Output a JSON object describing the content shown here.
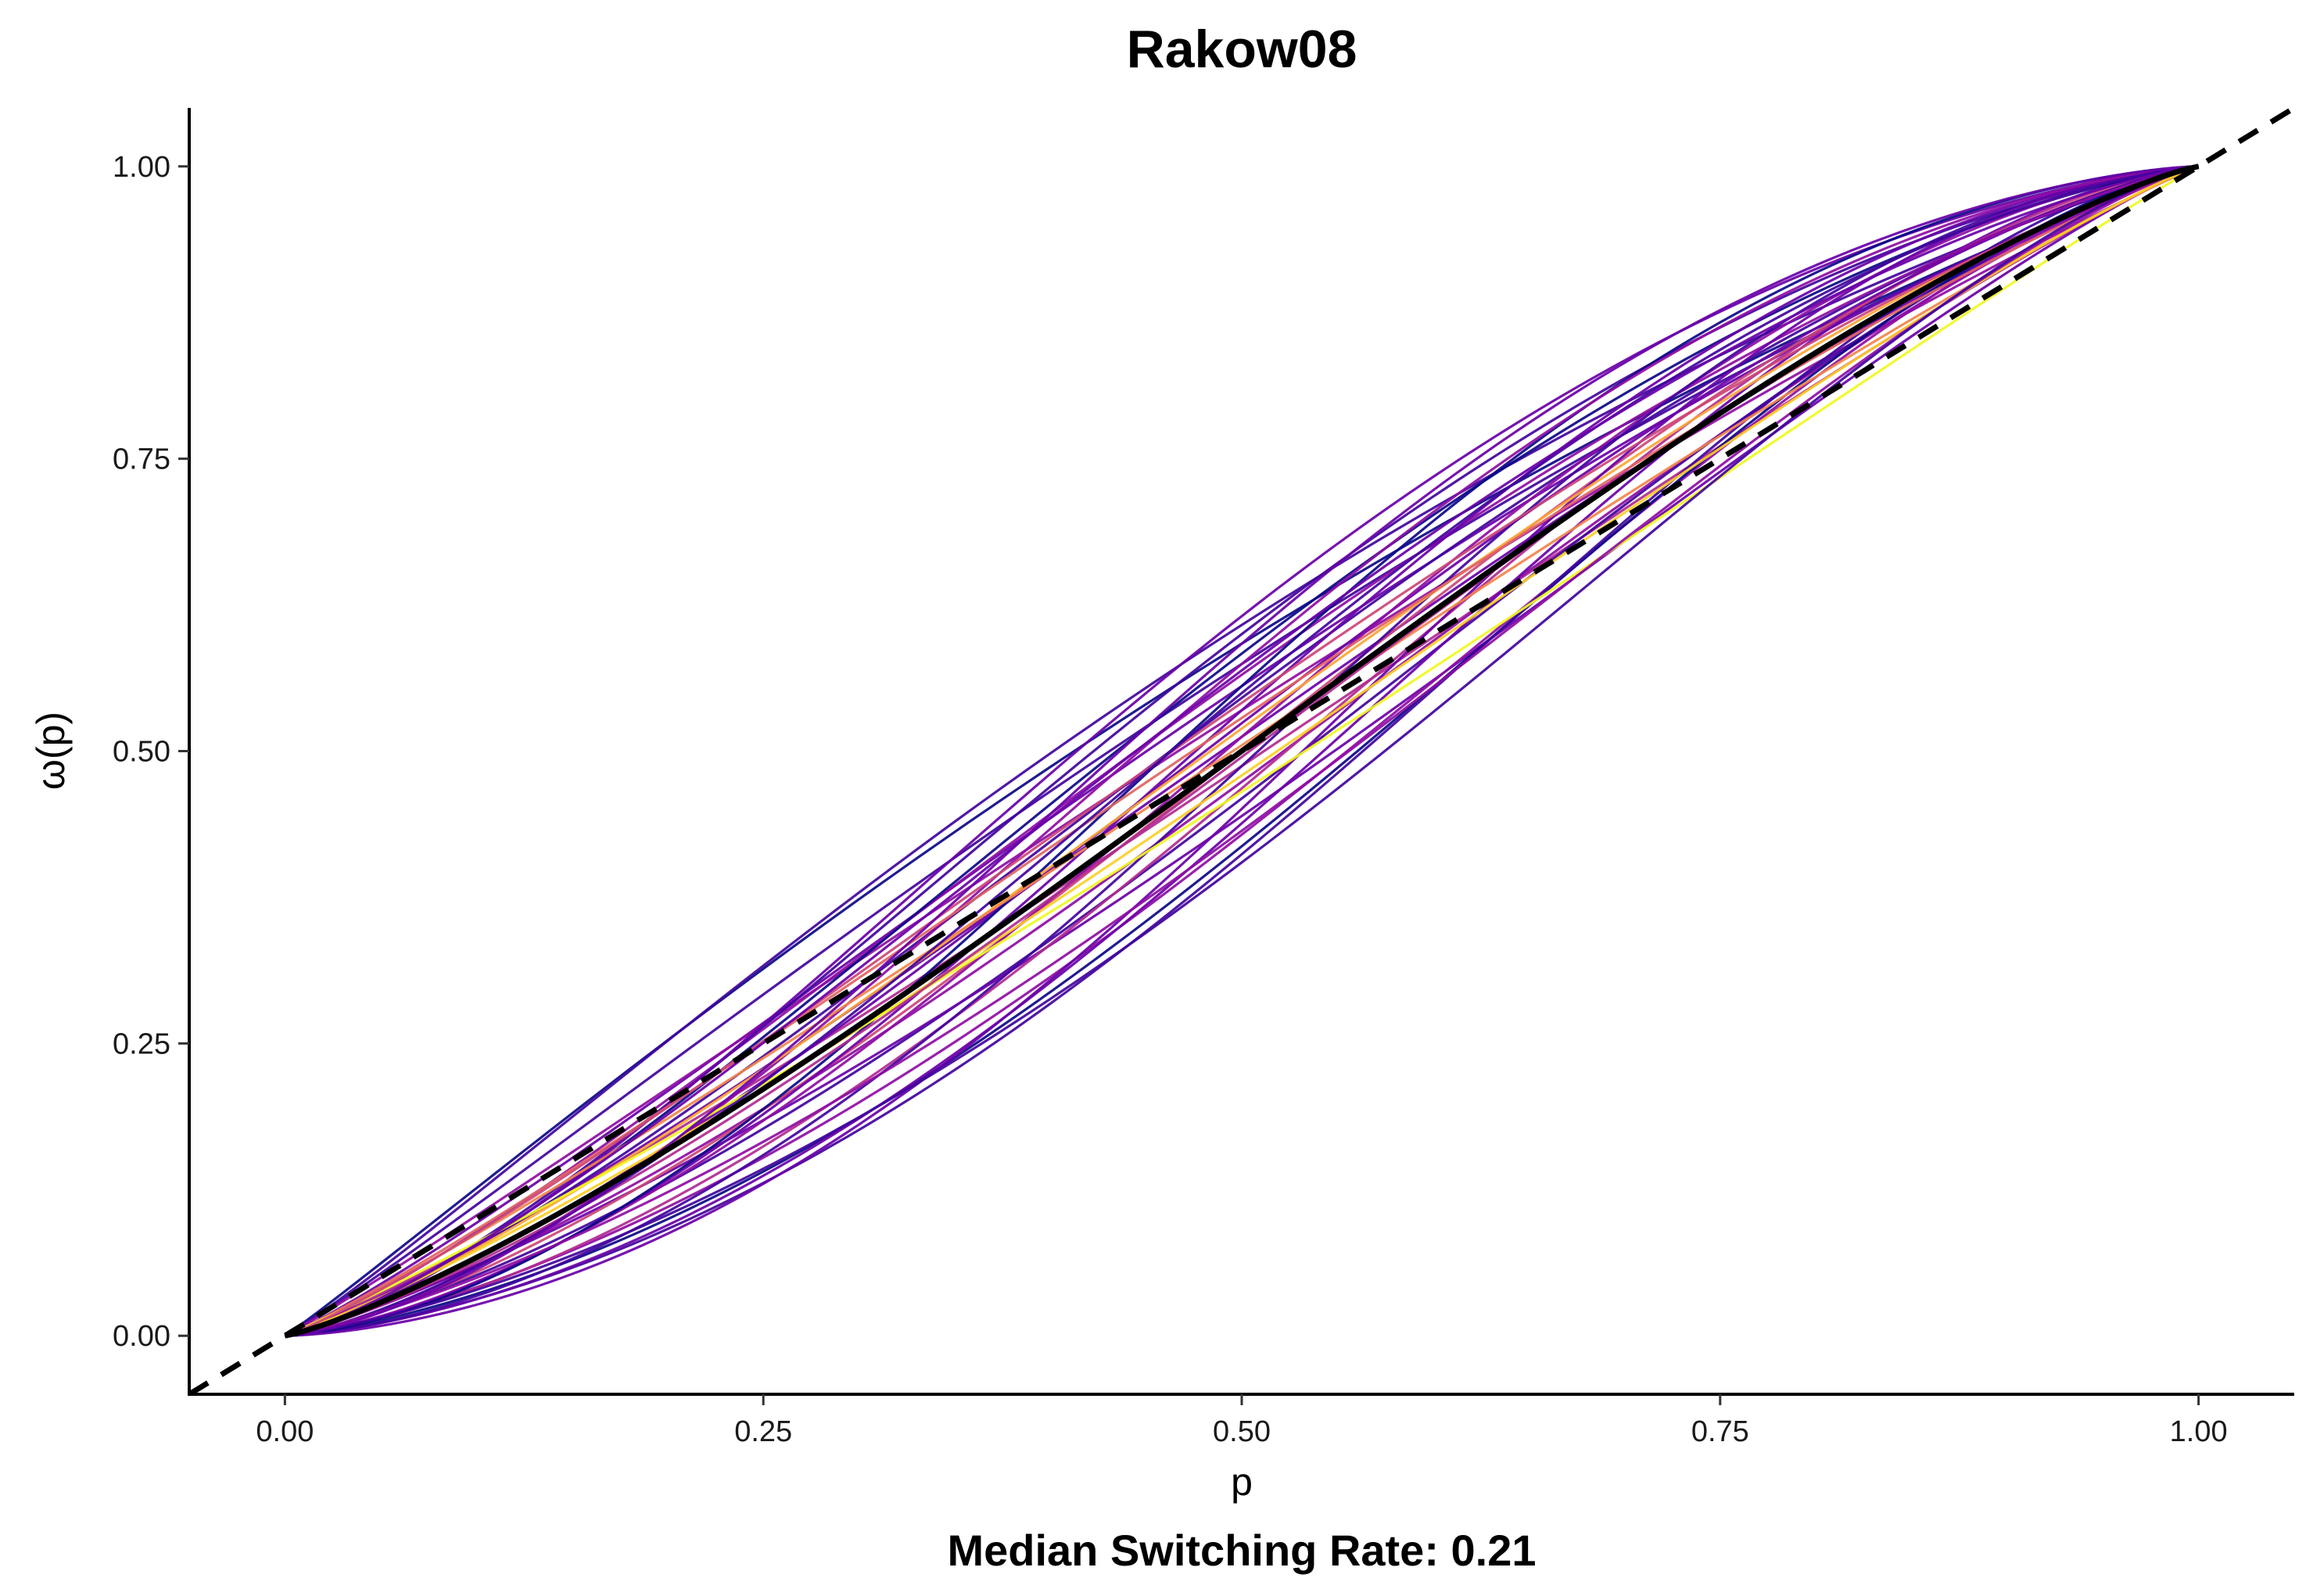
{
  "chart_data": {
    "type": "line",
    "title": "Rakow08",
    "xlabel": "p",
    "ylabel": "ω(p)",
    "caption": "Median Switching Rate: 0.21",
    "xlim": [
      -0.05,
      1.05
    ],
    "ylim": [
      -0.05,
      1.05
    ],
    "x_ticks": [
      0.0,
      0.25,
      0.5,
      0.75,
      1.0
    ],
    "x_tick_labels": [
      "0.00",
      "0.25",
      "0.50",
      "0.75",
      "1.00"
    ],
    "y_ticks": [
      0.0,
      0.25,
      0.5,
      0.75,
      1.0
    ],
    "y_tick_labels": [
      "0.00",
      "0.25",
      "0.50",
      "0.75",
      "1.00"
    ],
    "grid": false,
    "legend": "none",
    "function": "w(p) = d * p^g / (d * p^g + (1 - p)^g)",
    "colors": {
      "identity_line": "#000000",
      "median_curve": "#000000",
      "palette": [
        "#0d0887",
        "#41049d",
        "#6a00a8",
        "#8f0da4",
        "#b12a90",
        "#cc4778",
        "#e16462",
        "#f2844b",
        "#fca636",
        "#fcce25",
        "#f0f921"
      ]
    },
    "reference_line": {
      "name": "identity",
      "style": "dashed",
      "x": [
        -0.05,
        1.05
      ],
      "y": [
        -0.05,
        1.05
      ]
    },
    "median_curve": {
      "d": 1.0,
      "g": 1.2
    },
    "series": [
      {
        "d": 1.45,
        "g": 1.05,
        "color": "#0d0887"
      },
      {
        "d": 1.35,
        "g": 1.08,
        "color": "#41049d"
      },
      {
        "d": 1.25,
        "g": 1.12,
        "color": "#6a00a8"
      },
      {
        "d": 1.55,
        "g": 1.1,
        "color": "#41049d"
      },
      {
        "d": 1.15,
        "g": 1.05,
        "color": "#8f0da4"
      },
      {
        "d": 1.05,
        "g": 1.15,
        "color": "#6a00a8"
      },
      {
        "d": 0.95,
        "g": 1.1,
        "color": "#b12a90"
      },
      {
        "d": 0.9,
        "g": 1.2,
        "color": "#8f0da4"
      },
      {
        "d": 0.85,
        "g": 1.25,
        "color": "#41049d"
      },
      {
        "d": 0.8,
        "g": 1.15,
        "color": "#6a00a8"
      },
      {
        "d": 0.75,
        "g": 1.3,
        "color": "#8f0da4"
      },
      {
        "d": 0.72,
        "g": 1.35,
        "color": "#0d0887"
      },
      {
        "d": 0.7,
        "g": 1.4,
        "color": "#41049d"
      },
      {
        "d": 0.78,
        "g": 1.45,
        "color": "#6a00a8"
      },
      {
        "d": 0.88,
        "g": 1.38,
        "color": "#b12a90"
      },
      {
        "d": 1.0,
        "g": 1.3,
        "color": "#cc4778"
      },
      {
        "d": 1.1,
        "g": 1.25,
        "color": "#6a00a8"
      },
      {
        "d": 1.2,
        "g": 1.22,
        "color": "#41049d"
      },
      {
        "d": 1.3,
        "g": 1.18,
        "color": "#8f0da4"
      },
      {
        "d": 1.4,
        "g": 1.28,
        "color": "#0d0887"
      },
      {
        "d": 1.5,
        "g": 1.3,
        "color": "#41049d"
      },
      {
        "d": 1.6,
        "g": 1.35,
        "color": "#6a00a8"
      },
      {
        "d": 1.05,
        "g": 1.4,
        "color": "#8f0da4"
      },
      {
        "d": 0.95,
        "g": 1.5,
        "color": "#41049d"
      },
      {
        "d": 1.15,
        "g": 1.45,
        "color": "#6a00a8"
      },
      {
        "d": 1.25,
        "g": 1.5,
        "color": "#0d0887"
      },
      {
        "d": 0.82,
        "g": 1.55,
        "color": "#6a00a8"
      },
      {
        "d": 1.35,
        "g": 1.4,
        "color": "#8f0da4"
      },
      {
        "d": 1.08,
        "g": 1.18,
        "color": "#fca636"
      },
      {
        "d": 1.02,
        "g": 1.08,
        "color": "#f2844b"
      },
      {
        "d": 1.12,
        "g": 1.1,
        "color": "#e16462"
      },
      {
        "d": 0.92,
        "g": 1.12,
        "color": "#fcce25"
      },
      {
        "d": 0.87,
        "g": 1.05,
        "color": "#f0f921"
      },
      {
        "d": 1.18,
        "g": 1.14,
        "color": "#cc4778"
      },
      {
        "d": 0.98,
        "g": 1.22,
        "color": "#b12a90"
      },
      {
        "d": 1.22,
        "g": 1.35,
        "color": "#41049d"
      },
      {
        "d": 1.32,
        "g": 1.25,
        "color": "#6a00a8"
      },
      {
        "d": 0.76,
        "g": 1.22,
        "color": "#8f0da4"
      },
      {
        "d": 0.68,
        "g": 1.28,
        "color": "#41049d"
      },
      {
        "d": 1.45,
        "g": 1.45,
        "color": "#6a00a8"
      }
    ]
  }
}
